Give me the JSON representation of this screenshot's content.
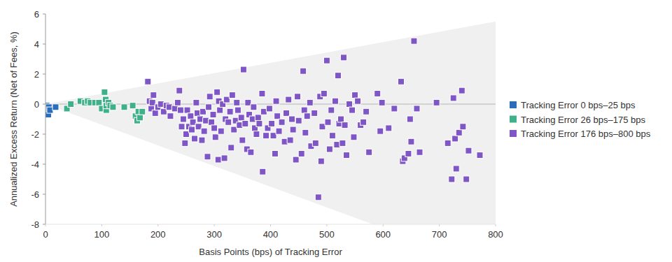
{
  "chart_data": {
    "type": "scatter",
    "x_label": "Basis Points (bps) of Tracking Error",
    "y_label": "Annualized Excess Return (Net of Fees, %)",
    "xlim": [
      0,
      800
    ],
    "ylim": [
      -8,
      6
    ],
    "xticks": [
      0,
      100,
      200,
      300,
      400,
      500,
      600,
      700,
      800
    ],
    "yticks": [
      -8,
      -6,
      -4,
      -2,
      0,
      2,
      4,
      6
    ],
    "grid": false,
    "legend": "right",
    "marker": "square",
    "band": {
      "x": [
        0,
        800
      ],
      "upper": [
        0,
        5.5
      ],
      "lower": [
        0,
        -11
      ]
    },
    "series": [
      {
        "name": "Tracking Error 0 bps–25 bps",
        "color": "#2a6ebb",
        "x": [
          2,
          3,
          4,
          5,
          6,
          8,
          18
        ],
        "values": [
          -0.1,
          -0.3,
          -0.5,
          -0.7,
          -0.2,
          -0.4,
          -0.2
        ]
      },
      {
        "name": "Tracking Error 26 bps–175 bps",
        "color": "#40b08a",
        "x": [
          38,
          45,
          62,
          70,
          75,
          80,
          88,
          95,
          100,
          105,
          107,
          108,
          108,
          112,
          115,
          120,
          140,
          155,
          160,
          163,
          165,
          168,
          172
        ],
        "values": [
          -0.3,
          0,
          0.2,
          0.1,
          0.2,
          0.1,
          0.1,
          0.1,
          -0.3,
          0.8,
          0.3,
          -0.4,
          -0.1,
          0.1,
          -0.1,
          -0.2,
          -0.2,
          -0.1,
          -0.8,
          -1.1,
          -0.5,
          -0.9,
          -0.5
        ]
      },
      {
        "name": "Tracking Error 176 bps–800 bps",
        "color": "#7f56c5",
        "x": [
          182,
          185,
          188,
          190,
          192,
          195,
          200,
          205,
          210,
          215,
          220,
          222,
          230,
          235,
          238,
          240,
          242,
          245,
          248,
          250,
          252,
          255,
          258,
          260,
          262,
          265,
          268,
          270,
          272,
          275,
          278,
          280,
          282,
          285,
          288,
          290,
          292,
          295,
          298,
          300,
          302,
          305,
          307,
          308,
          310,
          312,
          315,
          318,
          320,
          322,
          325,
          328,
          330,
          332,
          335,
          338,
          340,
          342,
          345,
          348,
          350,
          352,
          355,
          358,
          360,
          362,
          365,
          368,
          370,
          372,
          375,
          378,
          380,
          385,
          386,
          388,
          392,
          395,
          398,
          402,
          405,
          408,
          410,
          412,
          415,
          420,
          425,
          428,
          432,
          435,
          438,
          440,
          445,
          448,
          450,
          455,
          458,
          460,
          462,
          465,
          470,
          472,
          478,
          480,
          485,
          488,
          490,
          492,
          495,
          500,
          502,
          505,
          508,
          510,
          515,
          518,
          520,
          522,
          525,
          528,
          530,
          532,
          535,
          540,
          545,
          548,
          550,
          555,
          560,
          565,
          570,
          575,
          590,
          595,
          598,
          610,
          620,
          632,
          635,
          638,
          645,
          648,
          650,
          655,
          660,
          665,
          695,
          715,
          722,
          725,
          728,
          730,
          735,
          740,
          742,
          748,
          752,
          772
        ],
        "values": [
          1.5,
          0.2,
          -0.3,
          0.1,
          0.6,
          -0.6,
          -0.2,
          0,
          -0.5,
          -0.1,
          -0.2,
          -0.8,
          -0.3,
          0.1,
          0.9,
          -0.4,
          -1.5,
          -1,
          -2.6,
          -2,
          -0.4,
          -1.5,
          -0.8,
          -1.7,
          -1.2,
          -2.3,
          0.1,
          -0.6,
          -1.5,
          -1,
          -2.4,
          -0.5,
          -1.8,
          -1.1,
          -3.5,
          -0.2,
          0.5,
          -1.2,
          -0.7,
          -1.6,
          -2.2,
          0.8,
          -3.7,
          0.2,
          -0.4,
          -1.8,
          0,
          -3.6,
          -1,
          0.3,
          -1.2,
          -0.5,
          -2.9,
          0.6,
          -1.7,
          -1.1,
          0.1,
          -0.4,
          -1.4,
          -0.9,
          -2.4,
          2.3,
          -1.3,
          -3,
          0.1,
          -0.7,
          -3.2,
          -1,
          -0.2,
          -1.6,
          -2,
          -0.9,
          -1.3,
          0.7,
          -4.5,
          -0.5,
          -2.1,
          -1.6,
          -0.3,
          -1.3,
          -2.1,
          -3.3,
          0.2,
          -0.8,
          -1.8,
          -1.2,
          -2.5,
          -0.6,
          0.3,
          -2.4,
          -1,
          -1.7,
          -3.7,
          0.5,
          -1.1,
          -3.3,
          2.2,
          -0.4,
          -1.9,
          -0.8,
          0.1,
          -2.8,
          -0.6,
          -2.6,
          -6.2,
          0.5,
          -3.8,
          -1.5,
          0.7,
          2.9,
          -1.2,
          -3,
          -0.4,
          -2.1,
          0.2,
          -2.7,
          1.9,
          -1.3,
          -1,
          -2.6,
          3.1,
          -1.4,
          -3.4,
          0,
          -0.4,
          -2.2,
          0.6,
          0.2,
          -1.4,
          -1.2,
          -0.5,
          -3.2,
          0.7,
          -1.8,
          0.1,
          -1.6,
          -0.3,
          1.5,
          -3.8,
          -3.6,
          -3.3,
          -1,
          -2.5,
          4.2,
          -0.3,
          -3.2,
          0.1,
          -2.6,
          -5,
          0.4,
          -2.3,
          -4.3,
          -1.9,
          0.9,
          -1.5,
          -5,
          -3.1,
          -3.4
        ]
      }
    ]
  }
}
